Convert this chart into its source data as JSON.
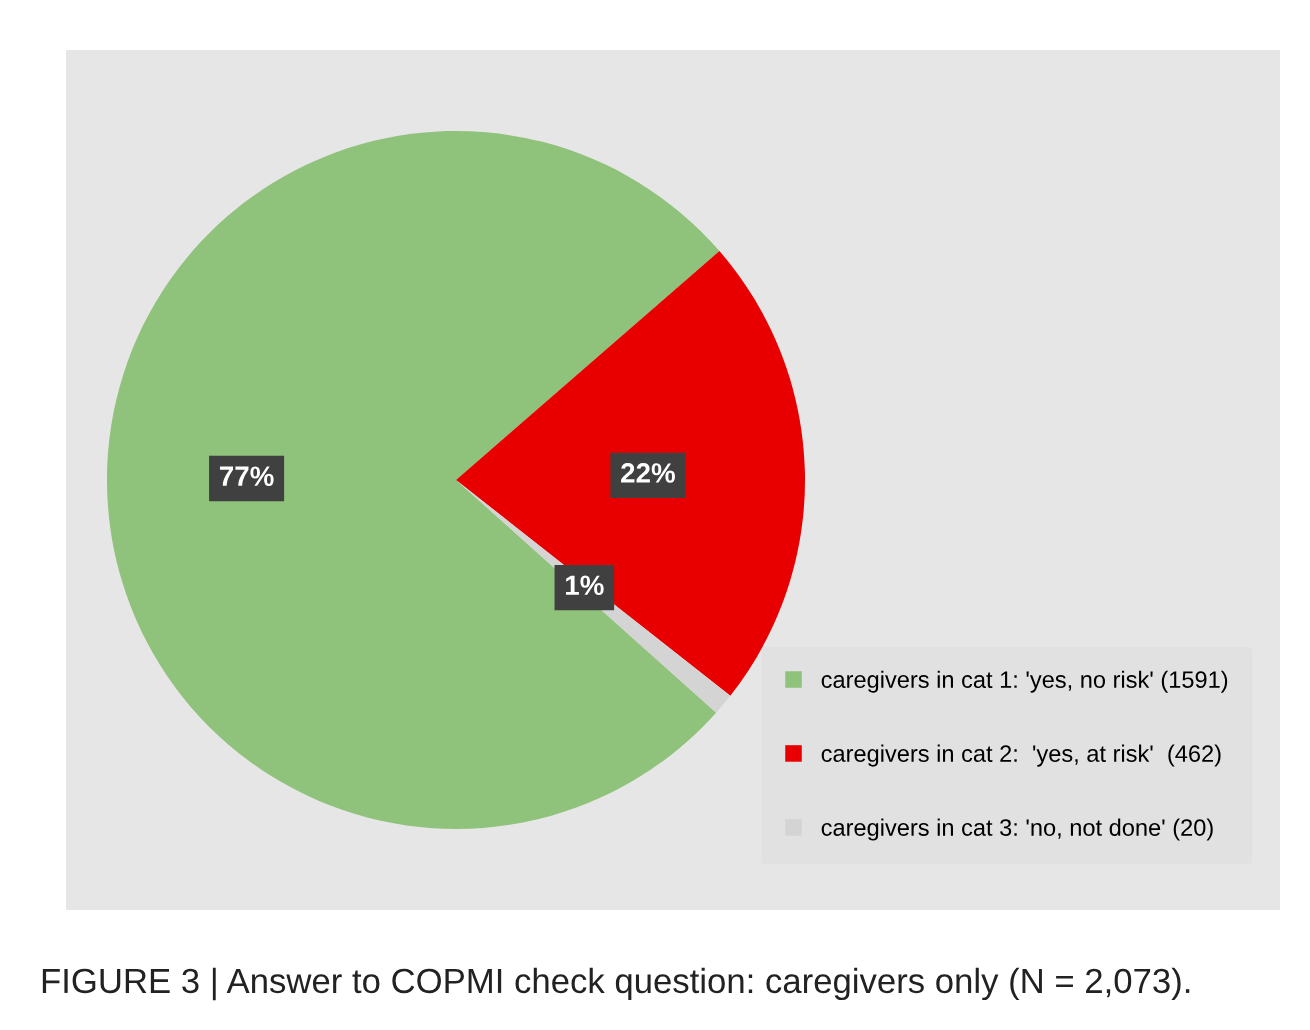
{
  "chart_data": {
    "type": "pie",
    "categories": [
      "caregivers in cat 1: 'yes, no risk' (1591)",
      "caregivers in cat 2:  'yes, at risk'  (462)",
      "caregivers in cat 3: 'no, not done' (20)"
    ],
    "values": [
      77,
      22,
      1
    ],
    "colors": [
      "#8fc27a",
      "#e80000",
      "#d4d4d4"
    ],
    "value_labels": [
      "77%",
      "22%",
      "1%"
    ],
    "legend": "bottom right",
    "annotations": [
      "FIGURE 3 | Answer to COPMI check question: caregivers only (N = 2,073)."
    ]
  }
}
